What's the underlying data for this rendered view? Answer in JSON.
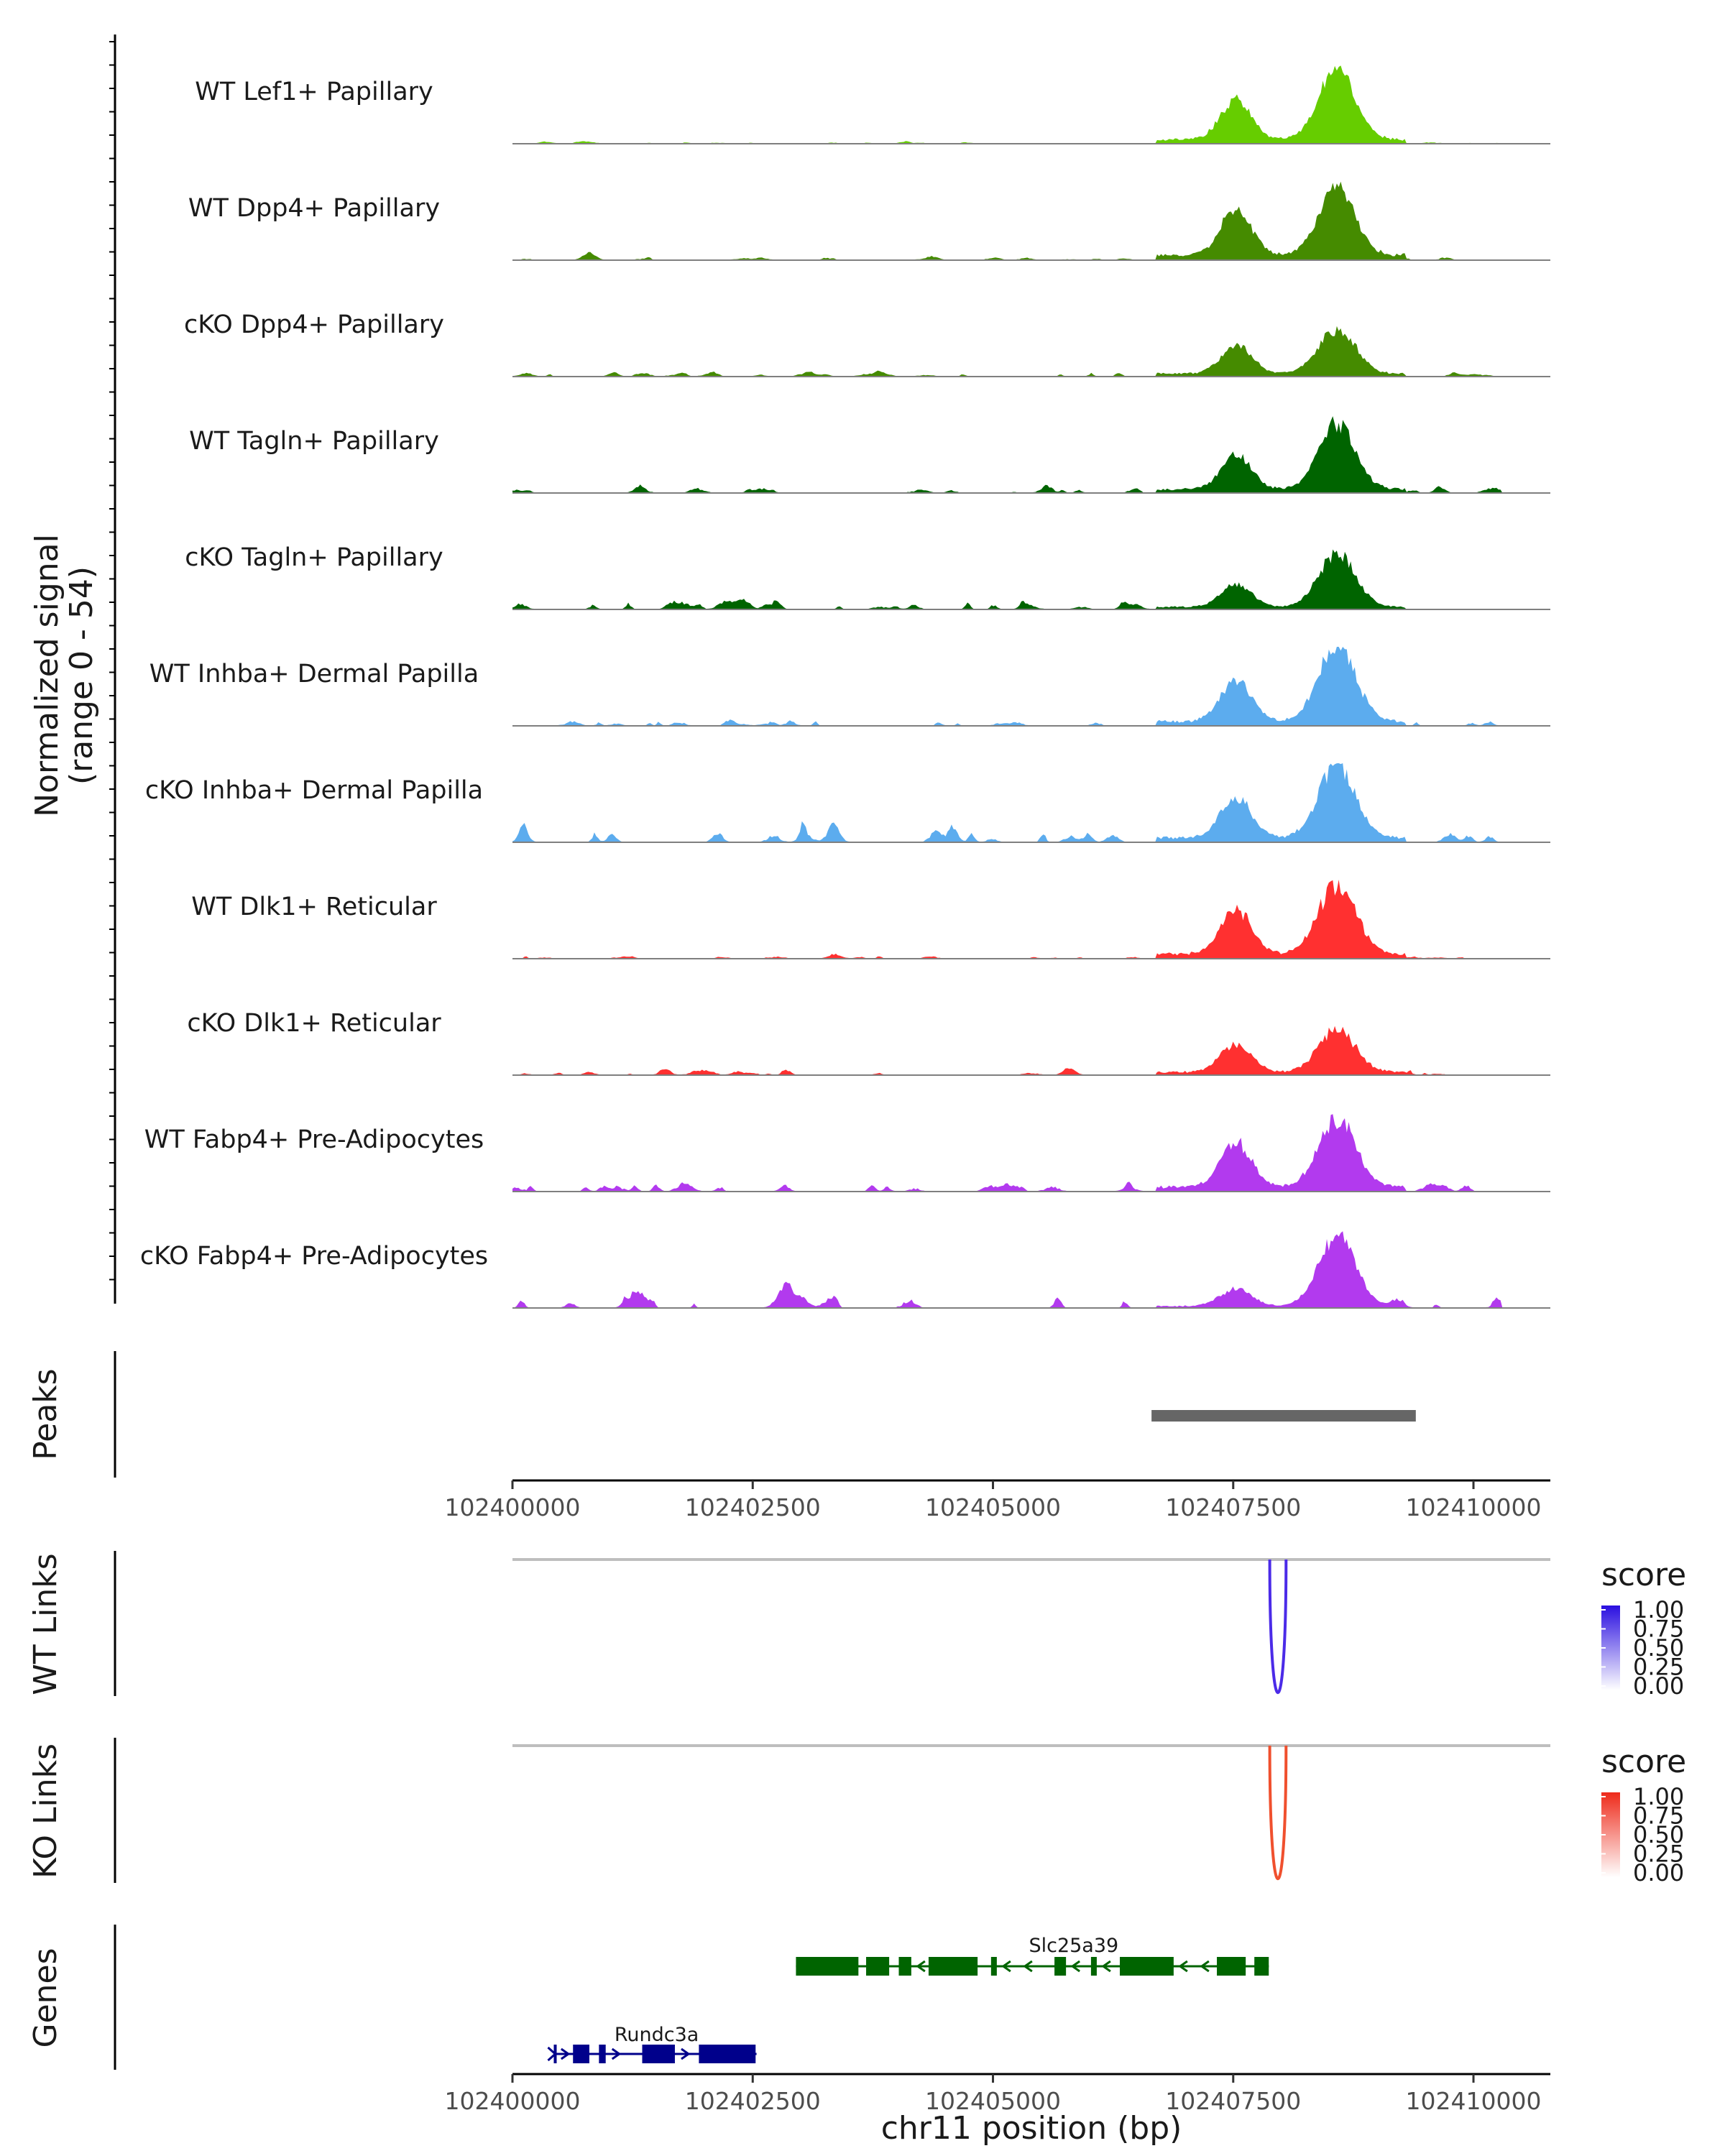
{
  "chart_data": {
    "type": "area",
    "region": "chr11",
    "xlim": [
      102400000,
      102410800
    ],
    "xlabel": "chr11 position (bp)",
    "x_ticks": [
      "102400000",
      "102402500",
      "102405000",
      "102407500",
      "102410000"
    ],
    "coverage": {
      "ylabel_line1": "Normalized signal",
      "ylabel_line2": "(range 0 - 54)",
      "ylim": [
        0,
        54
      ],
      "tracks": [
        {
          "name": "WT Lef1+ Papillary",
          "color": "#66CD00",
          "peak1": 27,
          "peak2": 47,
          "noise": 1.0,
          "seed": 11
        },
        {
          "name": "WT Dpp4+ Papillary",
          "color": "#458B00",
          "peak1": 31,
          "peak2": 45,
          "noise": 1.6,
          "seed": 23
        },
        {
          "name": "cKO Dpp4+ Papillary",
          "color": "#458B00",
          "peak1": 19,
          "peak2": 31,
          "noise": 2.5,
          "seed": 37
        },
        {
          "name": "WT Tagln+ Papillary",
          "color": "#006400",
          "peak1": 23,
          "peak2": 45,
          "noise": 2.8,
          "seed": 41
        },
        {
          "name": "cKO Tagln+ Papillary",
          "color": "#006400",
          "peak1": 15,
          "peak2": 37,
          "noise": 4.5,
          "seed": 53
        },
        {
          "name": "WT Inhba+ Dermal Papilla",
          "color": "#5CACEE",
          "peak1": 28,
          "peak2": 53,
          "noise": 3.0,
          "seed": 67
        },
        {
          "name": "cKO Inhba+ Dermal Papilla",
          "color": "#5CACEE",
          "peak1": 28,
          "peak2": 50,
          "noise": 7.0,
          "seed": 71
        },
        {
          "name": "WT Dlk1+ Reticular",
          "color": "#FF3030",
          "peak1": 31,
          "peak2": 48,
          "noise": 1.6,
          "seed": 83
        },
        {
          "name": "cKO Dlk1+ Reticular",
          "color": "#FF3030",
          "peak1": 19,
          "peak2": 29,
          "noise": 3.2,
          "seed": 97
        },
        {
          "name": "WT Fabp4+ Pre-Adipocytes",
          "color": "#B23AEE",
          "peak1": 30,
          "peak2": 47,
          "noise": 4.5,
          "seed": 101
        },
        {
          "name": "cKO Fabp4+ Pre-Adipocytes",
          "color": "#B23AEE",
          "peak1": 12,
          "peak2": 47,
          "noise": 7.0,
          "seed": 113
        }
      ]
    },
    "peaks": {
      "label": "Peaks",
      "regions": [
        {
          "start": 102406650,
          "end": 102409400
        }
      ]
    },
    "links": [
      {
        "label": "WT Links",
        "color": "#4B2BE8",
        "legend_color": "#3A1FE0",
        "start": 102407880,
        "end": 102408050,
        "score": 1.0
      },
      {
        "label": "KO Links",
        "color": "#F0502E",
        "legend_color": "#EE3B23",
        "start": 102407880,
        "end": 102408050,
        "score": 1.0
      }
    ],
    "legend": {
      "title": "score",
      "ticks": [
        "1.00",
        "0.75",
        "0.50",
        "0.25",
        "0.00"
      ]
    },
    "genes": {
      "label": "Genes",
      "items": [
        {
          "name": "Slc25a39",
          "color": "#006400",
          "strand": "-",
          "start": 102402950,
          "end": 102407870,
          "exons": [
            [
              102402950,
              102403600
            ],
            [
              102403680,
              102403920
            ],
            [
              102404020,
              102404150
            ],
            [
              102404330,
              102404840
            ],
            [
              102404980,
              102405040
            ],
            [
              102405640,
              102405760
            ],
            [
              102406020,
              102406080
            ],
            [
              102406320,
              102406880
            ],
            [
              102407330,
              102407630
            ],
            [
              102407720,
              102407870
            ]
          ]
        },
        {
          "name": "Rundc3a",
          "color": "#00008B",
          "strand": "+",
          "start": 102400430,
          "end": 102402540,
          "exons": [
            [
              102400430,
              102400440
            ],
            [
              102400630,
              102400800
            ],
            [
              102400900,
              102400970
            ],
            [
              102401350,
              102401690
            ],
            [
              102401940,
              102402530
            ]
          ]
        }
      ]
    }
  }
}
